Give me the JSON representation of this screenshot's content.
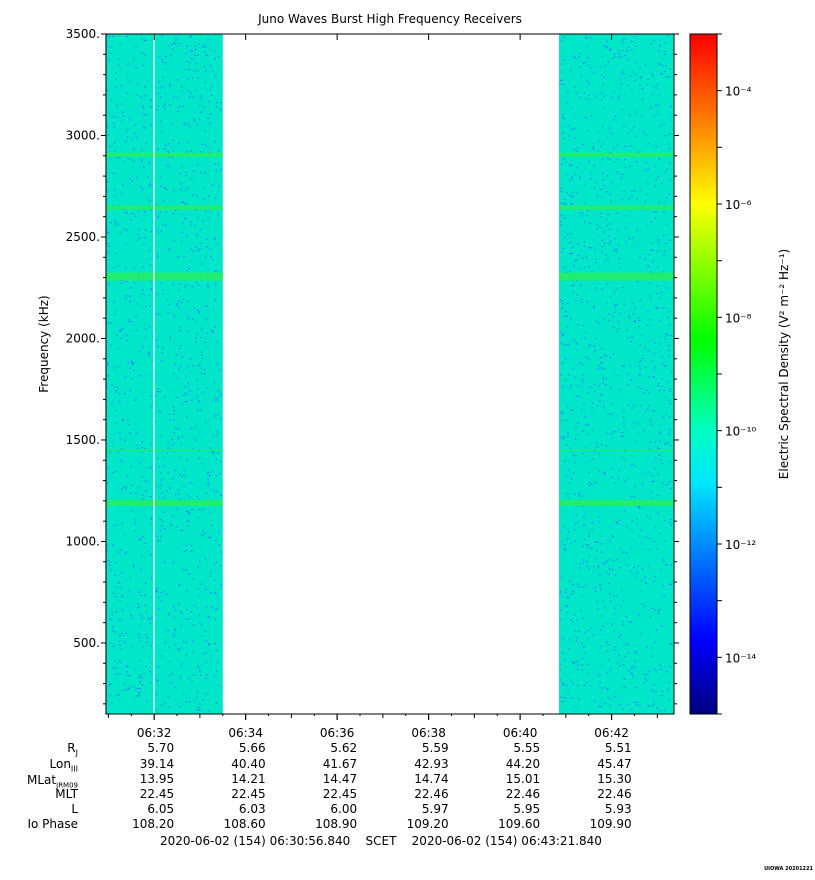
{
  "chart_data": {
    "type": "heatmap",
    "title": "Juno Waves Burst High Frequency Receivers",
    "ylabel": "Frequency (kHz)",
    "ylim": [
      150,
      3500
    ],
    "yticks": [
      500,
      1000,
      1500,
      2000,
      2500,
      3000,
      3500
    ],
    "ytick_labels": [
      "500.",
      "1000.",
      "1500.",
      "2000.",
      "2500.",
      "3000.",
      "3500."
    ],
    "x_start": "06:30:56.840",
    "x_end": "06:43:21.840",
    "xticks": [
      "06:32",
      "06:34",
      "06:36",
      "06:38",
      "06:40",
      "06:42"
    ],
    "data_intervals": [
      {
        "start": "06:30:56",
        "end": "06:33:30"
      },
      {
        "start": "06:40:51",
        "end": "06:43:21"
      }
    ],
    "data_gap": {
      "start": "06:33:30",
      "end": "06:40:51"
    },
    "spectral_lines_khz": [
      2905,
      2645,
      2305,
      1450,
      1190
    ],
    "colorbar": {
      "label": "Electric Spectral Density (V² m⁻² Hz⁻¹)",
      "scale": "log",
      "range": [
        1e-15,
        0.001
      ],
      "ticks": [
        "10⁻¹⁴",
        "10⁻¹²",
        "10⁻¹⁰",
        "10⁻⁸",
        "10⁻⁶",
        "10⁻⁴"
      ],
      "tick_exponents": [
        -14,
        -12,
        -10,
        -8,
        -6,
        -4
      ]
    }
  },
  "ephemeris": {
    "rows": [
      {
        "label": "RJ",
        "values": [
          "5.70",
          "5.66",
          "5.62",
          "5.59",
          "5.55",
          "5.51"
        ]
      },
      {
        "label": "LonIII",
        "values": [
          "39.14",
          "40.40",
          "41.67",
          "42.93",
          "44.20",
          "45.47"
        ]
      },
      {
        "label": "MLatJRM09",
        "values": [
          "13.95",
          "14.21",
          "14.47",
          "14.74",
          "15.01",
          "15.30"
        ]
      },
      {
        "label": "MLT",
        "values": [
          "22.45",
          "22.45",
          "22.45",
          "22.46",
          "22.46",
          "22.46"
        ]
      },
      {
        "label": "L",
        "values": [
          "6.05",
          "6.03",
          "6.00",
          "5.97",
          "5.95",
          "5.93"
        ]
      },
      {
        "label": "Io Phase",
        "values": [
          "108.20",
          "108.60",
          "108.90",
          "109.20",
          "109.60",
          "109.90"
        ]
      }
    ]
  },
  "footer": {
    "time_range": "2020-06-02 (154) 06:30:56.840    SCET    2020-06-02 (154) 06:43:21.840",
    "stamp": "UIOWA 20201221"
  },
  "colors": {
    "background": "#00e6c8",
    "noise_blue": "#1e78ff",
    "line_green": "#2cf050"
  }
}
